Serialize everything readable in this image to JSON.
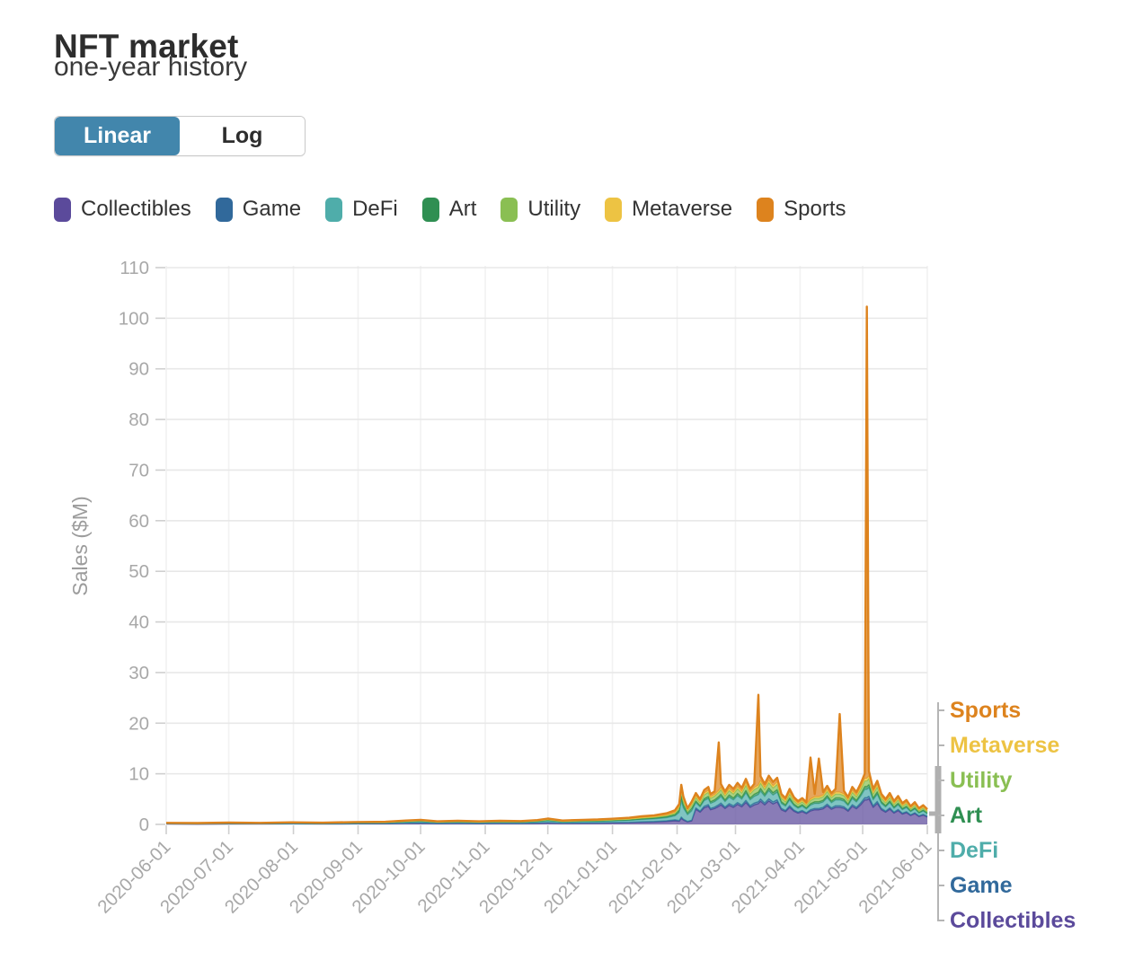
{
  "header": {
    "title": "NFT market",
    "subtitle": "one-year history"
  },
  "toggle": {
    "linear_label": "Linear",
    "log_label": "Log",
    "active": "Linear",
    "active_bg": "#4286ac"
  },
  "chart_data": {
    "type": "area",
    "stacked": true,
    "title": "NFT market one-year history",
    "xlabel": "",
    "ylabel": "Sales ($M)",
    "y_range": [
      0,
      110
    ],
    "y_ticks": [
      0,
      10,
      20,
      30,
      40,
      50,
      60,
      70,
      80,
      90,
      100,
      110
    ],
    "x_tick_labels": [
      "2020-06-01",
      "2020-07-01",
      "2020-08-01",
      "2020-09-01",
      "2020-10-01",
      "2020-11-01",
      "2020-12-01",
      "2021-01-01",
      "2021-02-01",
      "2021-03-01",
      "2021-04-01",
      "2021-05-01",
      "2021-06-01"
    ],
    "x_tick_days": [
      0,
      30,
      61,
      92,
      122,
      153,
      183,
      214,
      245,
      273,
      304,
      334,
      365
    ],
    "x_range_days": [
      0,
      365
    ],
    "x_unit": "days since 2020-06-01",
    "grid": true,
    "legend_position": "top",
    "tick_color": "#a8a8a8",
    "days": [
      0,
      15,
      30,
      45,
      60,
      75,
      90,
      105,
      115,
      122,
      130,
      140,
      150,
      160,
      170,
      178,
      183,
      190,
      200,
      207,
      214,
      222,
      228,
      234,
      240,
      244,
      246,
      247,
      248,
      250,
      252,
      254,
      256,
      258,
      260,
      261,
      263,
      265,
      266,
      268,
      270,
      272,
      274,
      276,
      278,
      280,
      282,
      284,
      285,
      287,
      289,
      291,
      293,
      295,
      297,
      299,
      301,
      303,
      305,
      307,
      309,
      311,
      313,
      315,
      317,
      319,
      321,
      323,
      325,
      327,
      329,
      331,
      333,
      335,
      336,
      337,
      339,
      341,
      343,
      345,
      347,
      349,
      351,
      353,
      355,
      357,
      359,
      361,
      363,
      365
    ],
    "series": [
      {
        "name": "Collectibles",
        "color": "#5b4a9b",
        "values": [
          0.08,
          0.06,
          0.09,
          0.08,
          0.1,
          0.08,
          0.11,
          0.13,
          0.19,
          0.23,
          0.15,
          0.18,
          0.15,
          0.18,
          0.16,
          0.21,
          0.29,
          0.19,
          0.23,
          0.24,
          0.28,
          0.33,
          0.4,
          0.45,
          0.55,
          0.7,
          0.6,
          1.17,
          0.83,
          0.48,
          0.68,
          2.98,
          2.4,
          3.26,
          3.55,
          2.88,
          3.12,
          3.55,
          3.84,
          3.12,
          3.74,
          3.36,
          3.94,
          3.46,
          4.32,
          3.36,
          3.84,
          4.08,
          4.56,
          3.84,
          4.61,
          4.03,
          4.42,
          2.88,
          2.5,
          3.36,
          2.59,
          2.21,
          2.5,
          2.11,
          2.64,
          2.88,
          2.88,
          3.07,
          3.65,
          2.98,
          3.36,
          3.36,
          3.17,
          2.59,
          3.55,
          3.07,
          3.84,
          4.8,
          4.8,
          5.04,
          3.36,
          4.13,
          2.88,
          2.4,
          2.98,
          2.21,
          2.69,
          2.02,
          2.3,
          1.73,
          2.11,
          1.54,
          1.82,
          1.44
        ]
      },
      {
        "name": "Game",
        "color": "#31699b",
        "values": [
          0.02,
          0.02,
          0.03,
          0.02,
          0.03,
          0.03,
          0.04,
          0.04,
          0.06,
          0.07,
          0.05,
          0.06,
          0.05,
          0.06,
          0.05,
          0.07,
          0.09,
          0.06,
          0.07,
          0.08,
          0.09,
          0.1,
          0.13,
          0.14,
          0.18,
          0.22,
          0.16,
          0.31,
          0.22,
          0.13,
          0.18,
          0.31,
          0.25,
          0.34,
          0.37,
          0.3,
          0.33,
          0.37,
          0.4,
          0.33,
          0.39,
          0.35,
          0.41,
          0.36,
          0.45,
          0.35,
          0.4,
          0.43,
          0.48,
          0.4,
          0.48,
          0.42,
          0.46,
          0.3,
          0.26,
          0.35,
          0.27,
          0.23,
          0.26,
          0.22,
          0.28,
          0.3,
          0.3,
          0.32,
          0.38,
          0.31,
          0.35,
          0.35,
          0.33,
          0.27,
          0.37,
          0.32,
          0.4,
          0.5,
          0.5,
          0.53,
          0.35,
          0.43,
          0.3,
          0.25,
          0.31,
          0.23,
          0.28,
          0.21,
          0.24,
          0.18,
          0.22,
          0.16,
          0.19,
          0.15
        ]
      },
      {
        "name": "DeFi",
        "color": "#4fadaa",
        "values": [
          0.08,
          0.07,
          0.09,
          0.08,
          0.11,
          0.09,
          0.12,
          0.14,
          0.2,
          0.24,
          0.16,
          0.19,
          0.16,
          0.19,
          0.18,
          0.23,
          0.31,
          0.2,
          0.24,
          0.26,
          0.3,
          0.35,
          0.43,
          0.49,
          0.59,
          0.76,
          1.6,
          3.12,
          2.2,
          1.28,
          1.8,
          0.99,
          0.8,
          1.09,
          1.18,
          0.96,
          1.04,
          1.18,
          1.28,
          1.04,
          1.25,
          1.12,
          1.31,
          1.15,
          1.44,
          1.12,
          1.28,
          1.36,
          1.52,
          1.28,
          1.54,
          1.34,
          1.47,
          0.96,
          0.83,
          1.12,
          0.86,
          0.74,
          0.83,
          0.7,
          0.88,
          0.96,
          0.96,
          1.02,
          1.22,
          0.99,
          1.12,
          1.12,
          1.06,
          0.86,
          1.18,
          1.02,
          1.28,
          1.6,
          1.6,
          1.68,
          1.12,
          1.38,
          0.96,
          0.8,
          0.99,
          0.74,
          0.9,
          0.67,
          0.77,
          0.58,
          0.7,
          0.51,
          0.61,
          0.48
        ]
      },
      {
        "name": "Art",
        "color": "#2f8f52",
        "values": [
          0.03,
          0.03,
          0.04,
          0.03,
          0.04,
          0.03,
          0.05,
          0.05,
          0.08,
          0.09,
          0.06,
          0.07,
          0.06,
          0.07,
          0.07,
          0.09,
          0.12,
          0.08,
          0.09,
          0.1,
          0.11,
          0.13,
          0.16,
          0.18,
          0.22,
          0.28,
          0.48,
          0.94,
          0.66,
          0.38,
          0.54,
          0.37,
          0.3,
          0.41,
          0.44,
          0.36,
          0.39,
          0.44,
          0.48,
          0.39,
          0.47,
          0.42,
          0.49,
          0.43,
          0.54,
          0.42,
          0.48,
          0.51,
          0.57,
          0.48,
          0.58,
          0.5,
          0.55,
          0.36,
          0.31,
          0.42,
          0.32,
          0.28,
          0.31,
          0.26,
          0.33,
          0.36,
          0.36,
          0.38,
          0.46,
          0.37,
          0.42,
          0.42,
          0.4,
          0.32,
          0.44,
          0.38,
          0.48,
          0.6,
          0.6,
          0.63,
          0.42,
          0.52,
          0.36,
          0.3,
          0.37,
          0.28,
          0.34,
          0.25,
          0.29,
          0.22,
          0.26,
          0.19,
          0.23,
          0.18
        ]
      },
      {
        "name": "Utility",
        "color": "#8abf53",
        "values": [
          0.03,
          0.03,
          0.04,
          0.03,
          0.04,
          0.03,
          0.05,
          0.05,
          0.08,
          0.09,
          0.06,
          0.07,
          0.06,
          0.07,
          0.07,
          0.09,
          0.12,
          0.08,
          0.09,
          0.1,
          0.11,
          0.13,
          0.16,
          0.18,
          0.22,
          0.28,
          0.56,
          1.09,
          0.77,
          0.45,
          0.63,
          0.68,
          0.55,
          0.75,
          0.81,
          0.66,
          0.72,
          0.81,
          0.88,
          0.72,
          0.86,
          0.77,
          0.9,
          0.79,
          0.99,
          0.77,
          0.88,
          0.94,
          1.05,
          0.88,
          1.06,
          0.92,
          1.01,
          0.66,
          0.57,
          0.77,
          0.59,
          0.51,
          0.57,
          0.48,
          0.61,
          0.66,
          0.66,
          0.7,
          0.84,
          0.68,
          0.77,
          0.77,
          0.73,
          0.59,
          0.81,
          0.7,
          0.88,
          1.1,
          1.1,
          1.16,
          0.77,
          0.95,
          0.66,
          0.55,
          0.68,
          0.51,
          0.62,
          0.46,
          0.53,
          0.4,
          0.48,
          0.35,
          0.42,
          0.33
        ]
      },
      {
        "name": "Metaverse",
        "color": "#edc343",
        "values": [
          0.02,
          0.01,
          0.02,
          0.02,
          0.02,
          0.02,
          0.02,
          0.03,
          0.04,
          0.05,
          0.03,
          0.04,
          0.03,
          0.04,
          0.03,
          0.04,
          0.06,
          0.04,
          0.05,
          0.05,
          0.06,
          0.07,
          0.08,
          0.09,
          0.11,
          0.14,
          0.16,
          0.31,
          0.22,
          0.13,
          0.18,
          0.31,
          0.25,
          0.34,
          0.37,
          0.3,
          0.33,
          0.37,
          0.4,
          0.33,
          0.39,
          0.35,
          0.41,
          0.36,
          0.45,
          0.35,
          0.4,
          0.43,
          0.48,
          0.4,
          0.48,
          0.42,
          0.46,
          0.3,
          0.26,
          0.35,
          0.27,
          0.23,
          0.26,
          0.22,
          0.28,
          0.3,
          0.3,
          0.32,
          0.38,
          0.31,
          0.35,
          0.35,
          0.33,
          0.27,
          0.37,
          0.32,
          0.4,
          0.5,
          0.5,
          0.53,
          0.35,
          0.43,
          0.3,
          0.25,
          0.31,
          0.23,
          0.28,
          0.21,
          0.24,
          0.18,
          0.22,
          0.16,
          0.19,
          0.15
        ]
      },
      {
        "name": "Sports",
        "color": "#dd831e",
        "values": [
          0.05,
          0.04,
          0.05,
          0.05,
          0.06,
          0.05,
          0.07,
          0.08,
          0.11,
          0.14,
          0.09,
          0.11,
          0.09,
          0.11,
          0.1,
          0.13,
          0.17,
          0.11,
          0.14,
          0.14,
          0.17,
          0.2,
          0.24,
          0.27,
          0.33,
          0.42,
          0.44,
          0.86,
          0.61,
          0.35,
          0.5,
          0.56,
          0.45,
          0.61,
          0.67,
          0.54,
          0.59,
          9.47,
          0.72,
          0.59,
          0.7,
          0.63,
          0.74,
          0.65,
          0.81,
          0.63,
          0.72,
          17.85,
          0.86,
          0.72,
          0.86,
          0.76,
          0.83,
          0.54,
          0.47,
          0.63,
          0.49,
          0.41,
          0.47,
          0.4,
          8.18,
          0.54,
          7.54,
          0.58,
          0.68,
          0.56,
          0.63,
          15.43,
          0.59,
          0.49,
          0.67,
          0.58,
          0.72,
          0.9,
          93.2,
          0.95,
          0.63,
          0.77,
          0.54,
          0.45,
          0.56,
          0.41,
          0.5,
          0.38,
          0.43,
          0.32,
          0.4,
          0.29,
          0.34,
          0.27
        ]
      }
    ],
    "annotations": {
      "peak_note": "largest spike reaches ~102 on 2021-05-03, driven by Sports",
      "right_labels_top_to_bottom": [
        "Sports",
        "Metaverse",
        "Utility",
        "Art",
        "DeFi",
        "Game",
        "Collectibles"
      ]
    }
  }
}
